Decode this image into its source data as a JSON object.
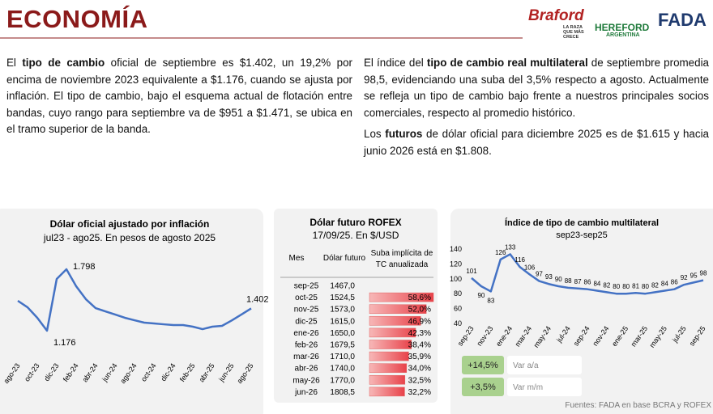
{
  "header": {
    "title": "ECONOMÍA"
  },
  "logos": {
    "braford": "Braford",
    "braford_tag": "LA RAZA QUE MÁS CRECE",
    "hereford": "HEREFORD",
    "hereford_sub": "ARGENTINA",
    "fada": "FADA"
  },
  "left_text": [
    [
      {
        "text": "El "
      },
      {
        "text": "tipo de cambio",
        "bold": true
      },
      {
        "text": " oficial de septiembre es $1.402, un 19,2% por encima de noviembre 2023 equivalente a $1.176, cuando se ajusta por inflación. El tipo de cambio, bajo el esquema actual de flotación entre bandas, cuyo rango para septiembre va de $951 a $1.471, se ubica en el tramo superior de la banda."
      }
    ]
  ],
  "right_text": [
    [
      {
        "text": "El índice del "
      },
      {
        "text": "tipo de cambio real multilateral",
        "bold": true
      },
      {
        "text": " de septiembre promedia 98,5, evidenciando una suba del 3,5% respecto a agosto. Actualmente se refleja un tipo de cambio bajo frente a nuestros principales socios comerciales, respecto al promedio histórico."
      }
    ],
    [
      {
        "text": "Los "
      },
      {
        "text": "futuros",
        "bold": true
      },
      {
        "text": " de dólar oficial para diciembre 2025 es de $1.615 y hacia junio 2026 está en $1.808."
      }
    ]
  ],
  "chart_data": [
    {
      "type": "line",
      "title": "Dólar oficial ajustado por inflación",
      "subtitle": "jul23 - ago25. En pesos de agosto 2025",
      "color": "#4472c4",
      "categories": [
        "ago-23",
        null,
        "oct-23",
        null,
        "dic-23",
        null,
        "feb-24",
        null,
        "abr-24",
        null,
        "jun-24",
        null,
        "ago-24",
        null,
        "oct-24",
        null,
        "dic-24",
        null,
        "feb-25",
        null,
        "abr-25",
        null,
        "jun-25",
        null,
        "ago-25"
      ],
      "values": [
        1479,
        1413,
        1307,
        1176,
        1700,
        1798,
        1626,
        1495,
        1405,
        1372,
        1340,
        1307,
        1282,
        1258,
        1250,
        1241,
        1233,
        1233,
        1217,
        1192,
        1217,
        1225,
        1280,
        1340,
        1402
      ],
      "value_labels": [
        null,
        null,
        null,
        "1.176",
        null,
        "1.798",
        null,
        null,
        null,
        null,
        null,
        null,
        null,
        null,
        null,
        null,
        null,
        null,
        null,
        null,
        null,
        null,
        null,
        null,
        "1.402"
      ]
    },
    {
      "type": "line",
      "title": "Índice de tipo de cambio multilateral",
      "subtitle": "sep23-sep25",
      "color": "#4472c4",
      "categories": [
        "sep-23",
        null,
        "nov-23",
        null,
        "ene-24",
        null,
        "mar-24",
        null,
        "may-24",
        null,
        "jul-24",
        null,
        "sep-24",
        null,
        "nov-24",
        null,
        "ene-25",
        null,
        "mar-25",
        null,
        "may-25",
        null,
        "jul-25",
        null,
        "sep-25"
      ],
      "values": [
        101,
        90,
        83,
        126,
        133,
        116,
        106,
        97,
        93,
        90,
        88,
        87,
        86,
        84,
        82,
        80,
        80,
        81,
        80,
        82,
        84,
        86,
        92,
        95,
        98
      ],
      "ylim": [
        40,
        140
      ],
      "yticks": [
        40,
        60,
        80,
        100,
        120,
        140
      ],
      "grid": false
    }
  ],
  "table": {
    "title": "Dólar futuro ROFEX",
    "subtitle": "17/09/25. En $/USD",
    "headers": [
      "Mes",
      "Dólar futuro",
      "Suba implícita de TC anualizada"
    ],
    "months": [
      "sep-25",
      "oct-25",
      "nov-25",
      "dic-25",
      "ene-26",
      "feb-26",
      "mar-26",
      "abr-26",
      "may-26",
      "jun-26"
    ],
    "futures": [
      "1467,0",
      "1524,5",
      "1573,0",
      "1615,0",
      "1650,0",
      "1679,5",
      "1710,0",
      "1740,0",
      "1770,0",
      "1808,5"
    ],
    "suba": [
      null,
      58.6,
      52.0,
      46.9,
      42.3,
      38.4,
      35.9,
      34.0,
      32.5,
      32.2
    ],
    "suba_labels": [
      null,
      "58,6%",
      "52,0%",
      "46,9%",
      "42,3%",
      "38,4%",
      "35,9%",
      "34,0%",
      "32,5%",
      "32,2%"
    ]
  },
  "indicators": [
    {
      "value": "+14,5%",
      "label": "Var a/a"
    },
    {
      "value": "+3,5%",
      "label": "Var m/m"
    }
  ],
  "source": "Fuentes: FADA en base BCRA y ROFEX"
}
